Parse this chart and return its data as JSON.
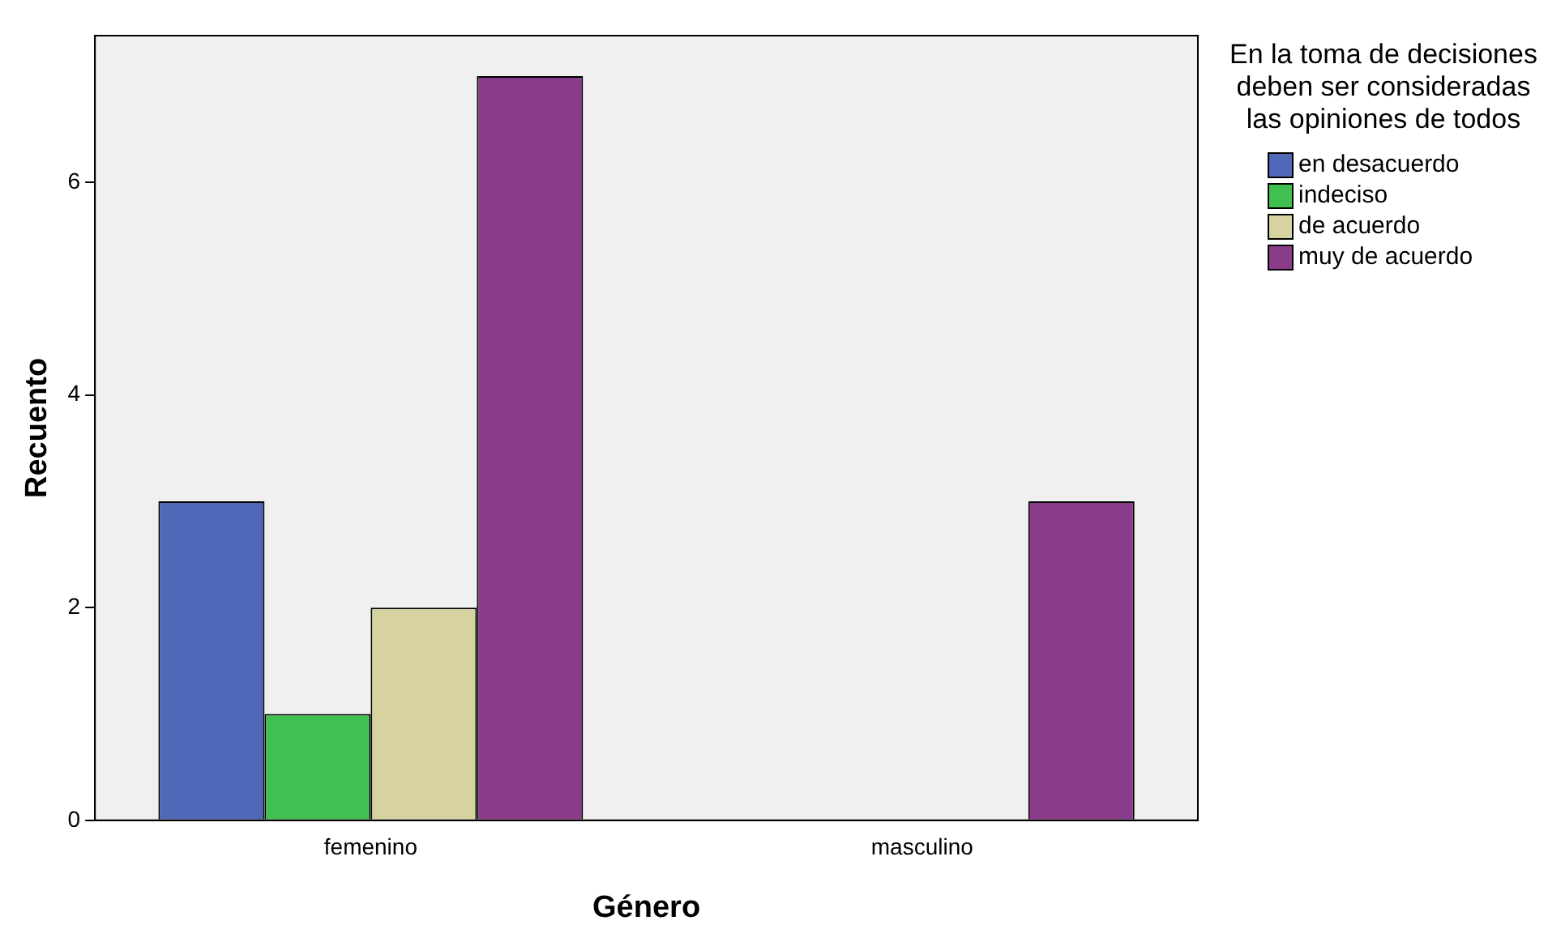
{
  "chart_data": {
    "type": "bar",
    "xlabel": "Género",
    "ylabel": "Recuento",
    "legend_title": "En la toma de decisiones deben ser consideradas las opiniones de todos",
    "categories": [
      "femenino",
      "masculino"
    ],
    "series": [
      {
        "name": "en desacuerdo",
        "color": "#5068b8",
        "values": [
          3,
          0
        ]
      },
      {
        "name": "indeciso",
        "color": "#40c050",
        "values": [
          1,
          0
        ]
      },
      {
        "name": "de acuerdo",
        "color": "#d6d3a0",
        "values": [
          2,
          0
        ]
      },
      {
        "name": "muy de acuerdo",
        "color": "#8a3c8a",
        "values": [
          7,
          3
        ]
      }
    ],
    "ylim": [
      0,
      7.38
    ],
    "yticks": [
      0,
      2,
      4,
      6
    ],
    "grid": false,
    "legend": "right"
  }
}
